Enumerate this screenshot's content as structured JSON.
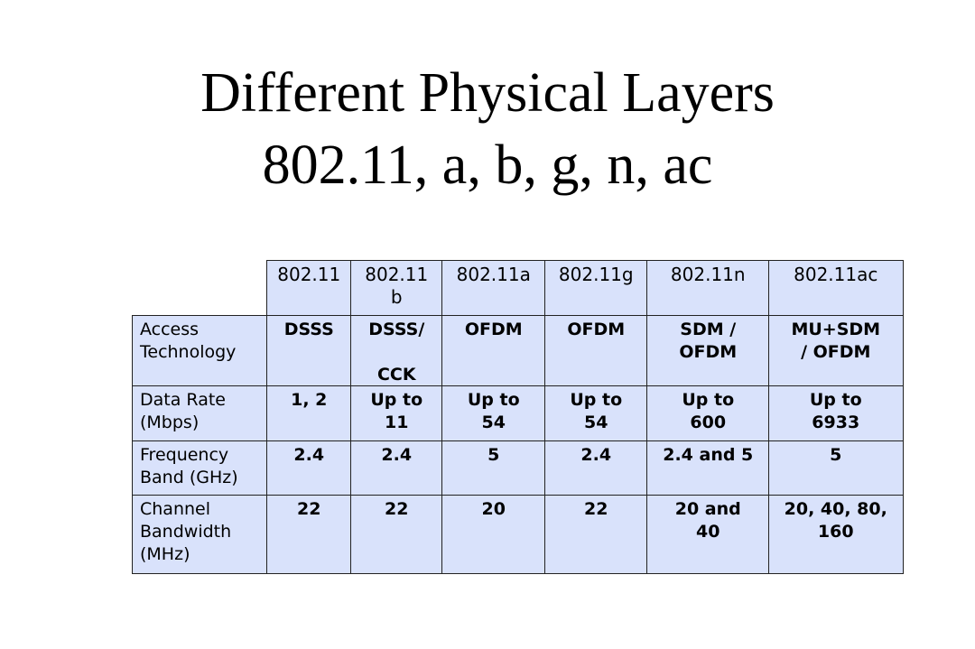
{
  "title": {
    "line1": "Different Physical Layers",
    "line2": "802.11, a, b, g, n, ac"
  },
  "table": {
    "header": [
      "802.11",
      "802.11b",
      "802.11a",
      "802.11g",
      "802.11n",
      "802.11ac"
    ],
    "rows": [
      [
        "Access\nTechnology",
        "DSSS",
        "DSSS/\n\nCCK",
        "OFDM",
        "OFDM",
        "SDM /\nOFDM",
        "MU+SDM\n/ OFDM"
      ],
      [
        "Data Rate\n(Mbps)",
        "1, 2",
        "Up to\n11",
        "Up to\n54",
        "Up to\n54",
        "Up to\n600",
        "Up to\n6933"
      ],
      [
        "Frequency\nBand (GHz)",
        "2.4",
        "2.4",
        "5",
        "2.4",
        "2.4 and 5",
        "5"
      ],
      [
        "Channel\nBandwidth\n(MHz)",
        "22",
        "22",
        "20",
        "22",
        "20 and\n40",
        "20, 40, 80,\n160"
      ]
    ]
  }
}
